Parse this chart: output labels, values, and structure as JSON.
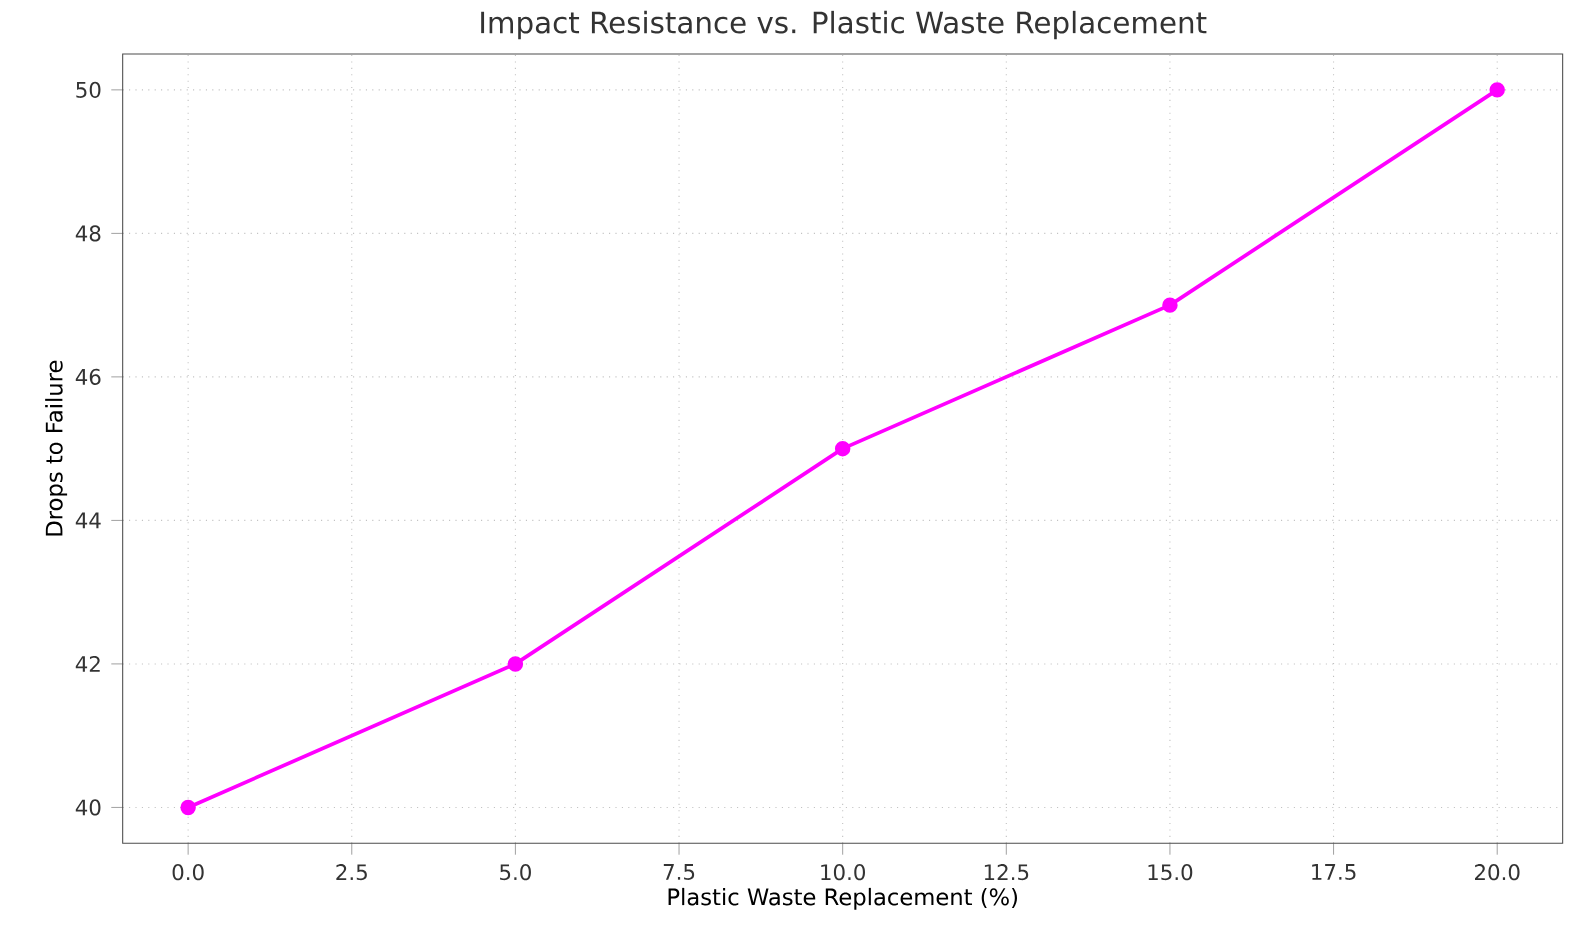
{
  "chart_data": {
    "type": "line",
    "title": "Impact Resistance vs. Plastic Waste Replacement",
    "xlabel": "Plastic Waste Replacement (%)",
    "ylabel": "Drops to Failure",
    "x": [
      0,
      5,
      10,
      15,
      20
    ],
    "values": [
      40,
      42,
      45,
      47,
      50
    ],
    "color": "#ff00ff",
    "xlim": [
      -1,
      21
    ],
    "ylim": [
      39.5,
      50.5
    ],
    "xticks": [
      {
        "value": 0,
        "label": "0.0"
      },
      {
        "value": 2.5,
        "label": "2.5"
      },
      {
        "value": 5,
        "label": "5.0"
      },
      {
        "value": 7.5,
        "label": "7.5"
      },
      {
        "value": 10,
        "label": "10.0"
      },
      {
        "value": 12.5,
        "label": "12.5"
      },
      {
        "value": 15,
        "label": "15.0"
      },
      {
        "value": 17.5,
        "label": "17.5"
      },
      {
        "value": 20,
        "label": "20.0"
      }
    ],
    "yticks": [
      40,
      42,
      44,
      46,
      48,
      50
    ],
    "grid": true,
    "marker": "circle",
    "line_style": "solid"
  }
}
